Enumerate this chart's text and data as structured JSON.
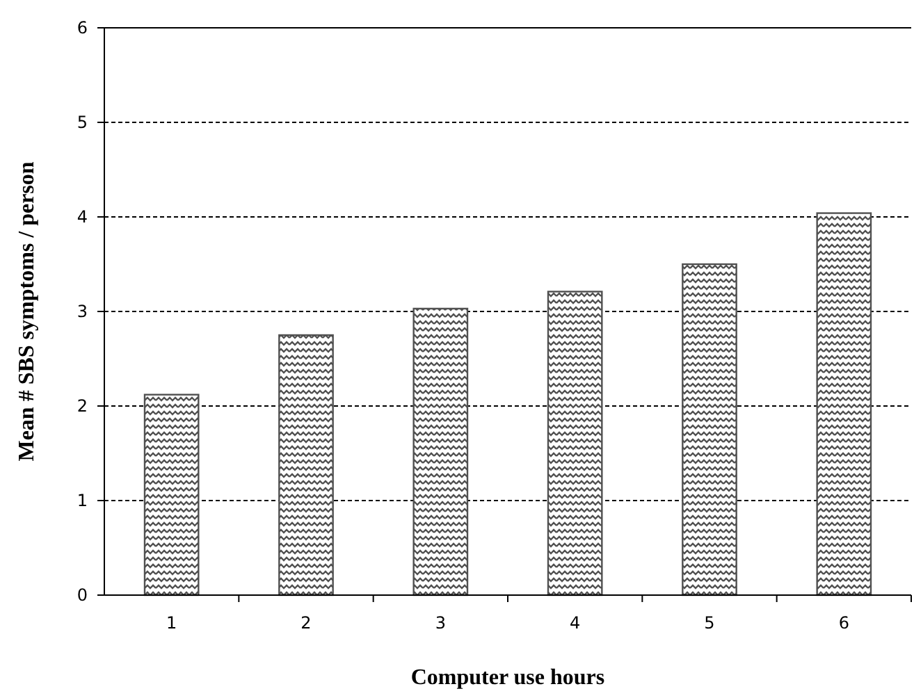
{
  "chart_data": {
    "type": "bar",
    "xlabel": "Computer use hours",
    "ylabel": "Mean # SBS symptoms / person",
    "categories": [
      "1",
      "2",
      "3",
      "4",
      "5",
      "6"
    ],
    "values": [
      2.12,
      2.75,
      3.03,
      3.21,
      3.5,
      4.04
    ],
    "color": "#505050",
    "ylim": [
      0,
      6
    ],
    "yticks": [
      0,
      1,
      2,
      3,
      4,
      5,
      6
    ],
    "grid": "y"
  }
}
